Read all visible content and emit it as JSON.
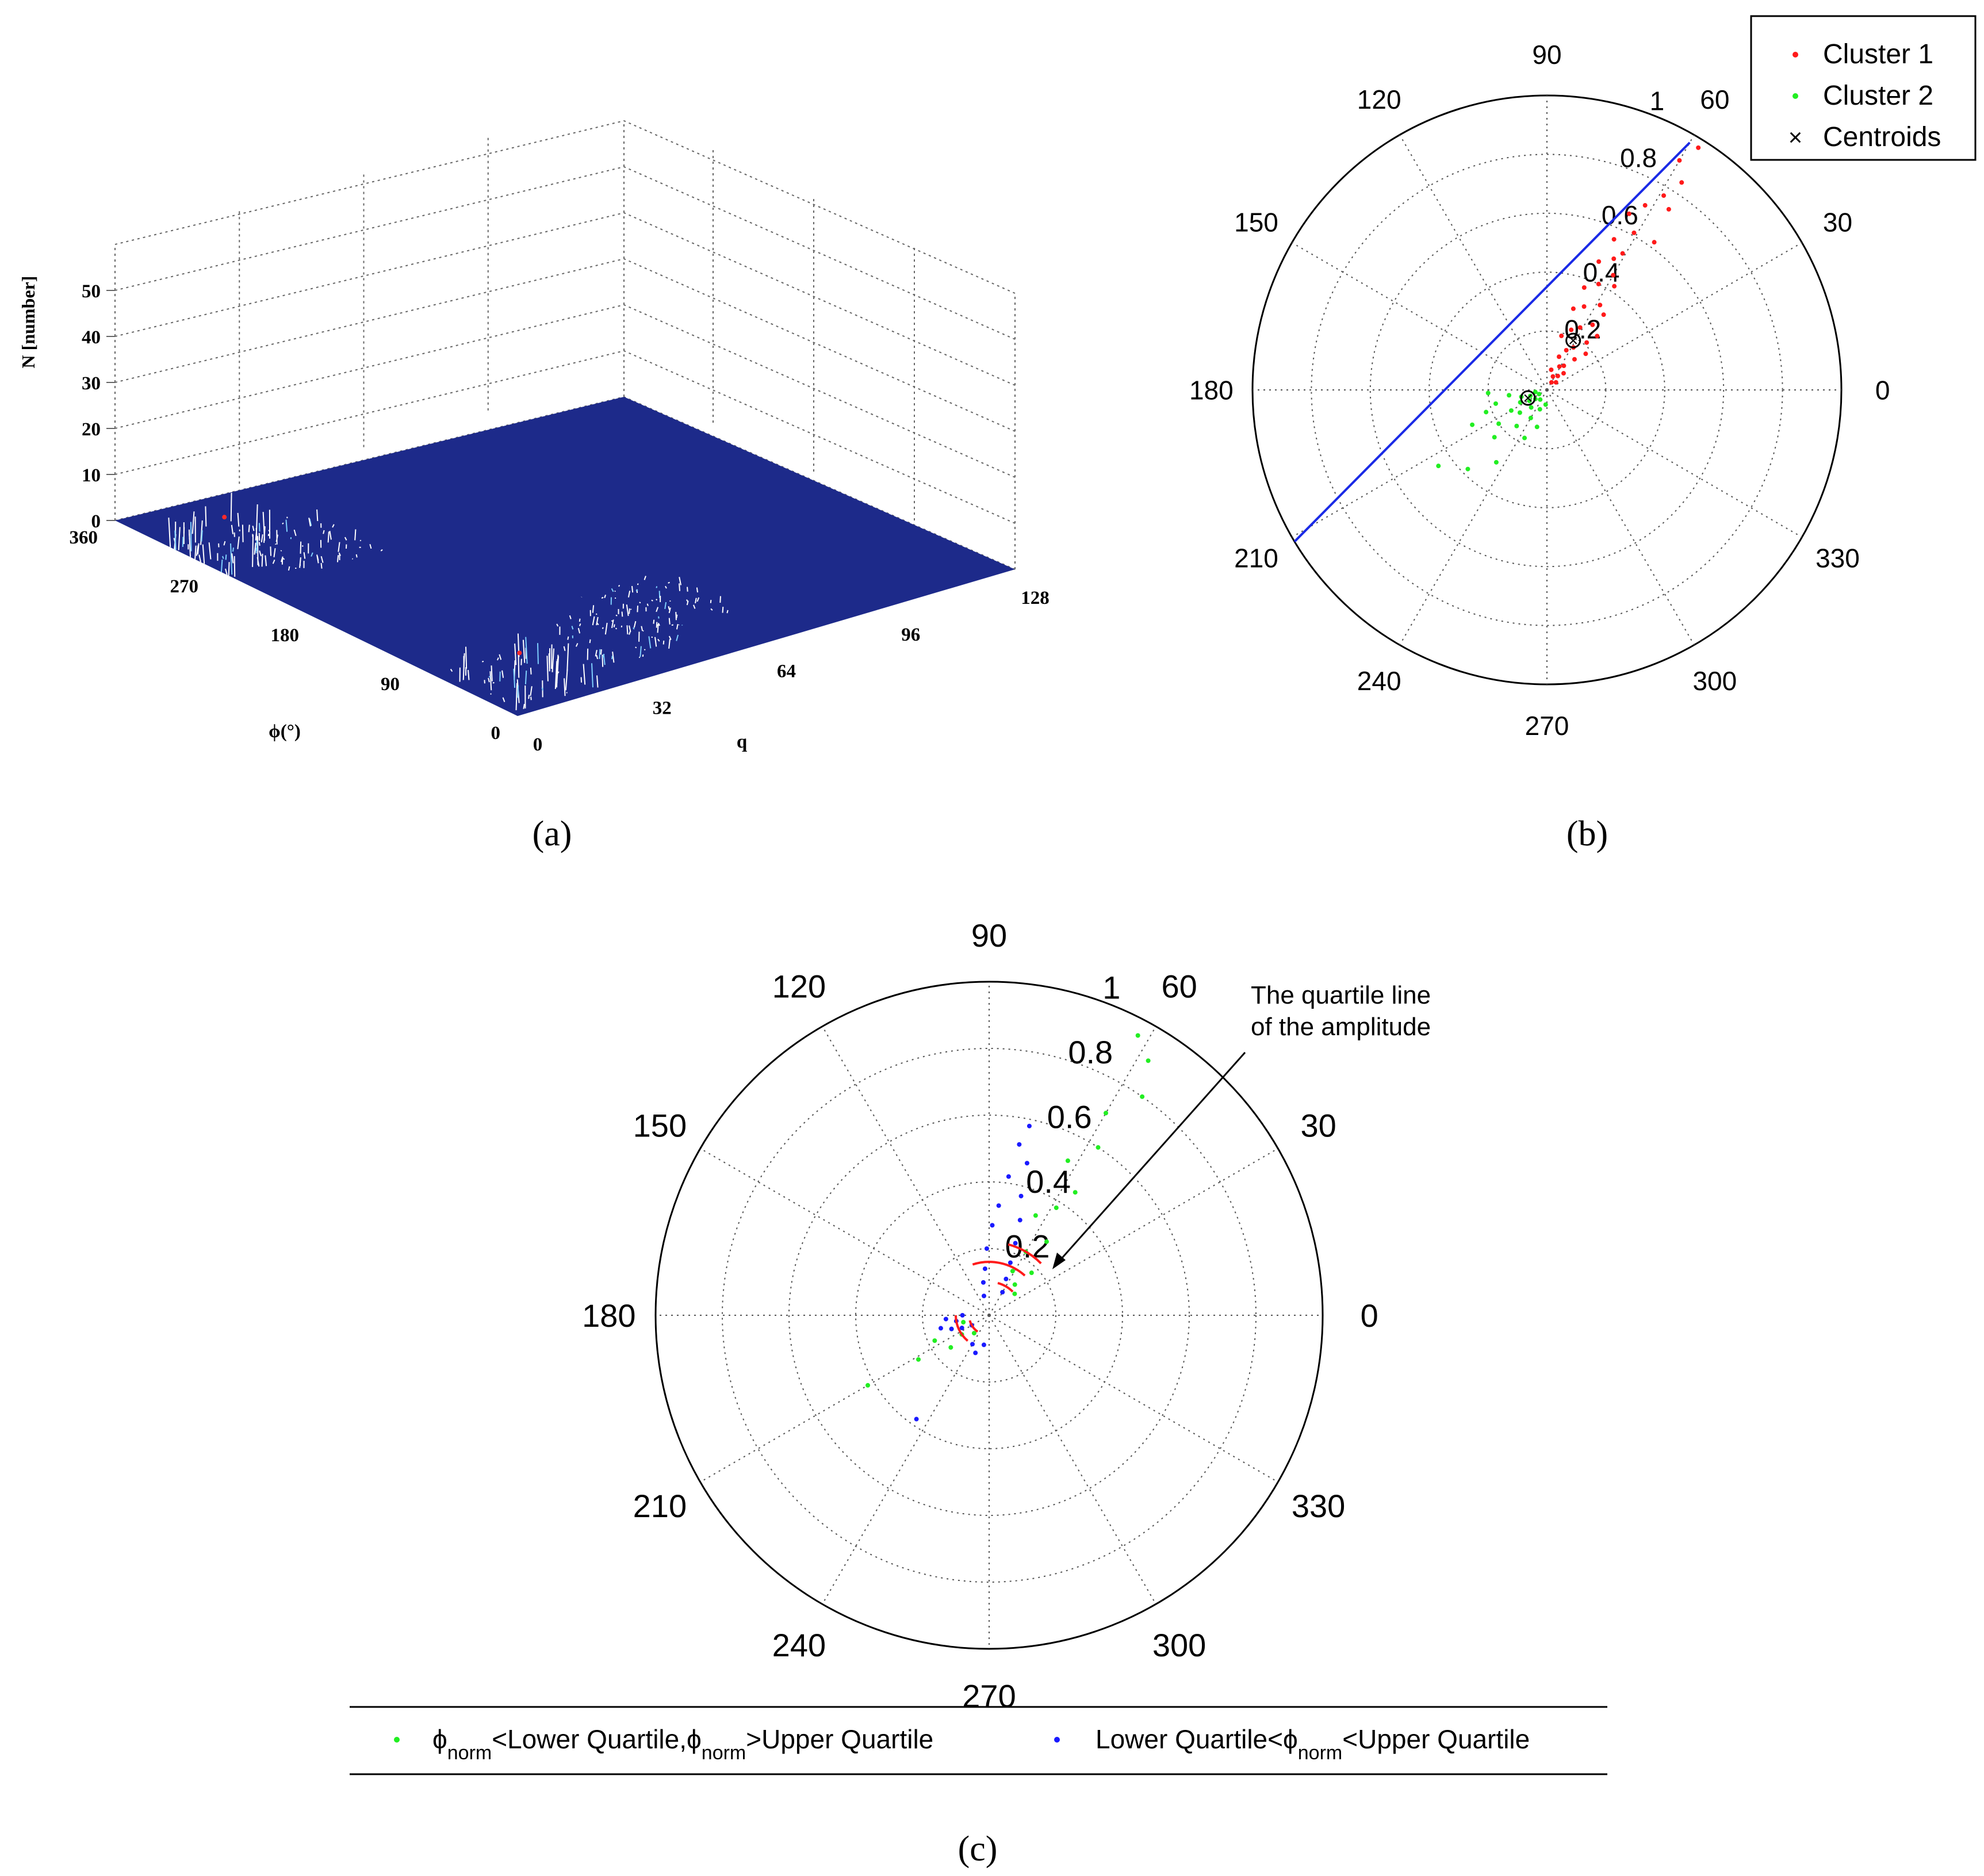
{
  "colors": {
    "surface": "#1d2a8a",
    "cluster1": "#ff1a1a",
    "cluster2": "#22ee22",
    "blue_pts": "#1a1aff",
    "fit_line": "#1a2ae6",
    "quartile_arc": "#ff1a1a",
    "axis": "#000000"
  },
  "panel_labels": {
    "a": "(a)",
    "b": "(b)",
    "c": "(c)"
  },
  "chart_data": [
    {
      "type": "surface3d",
      "zlabel": "N [number]",
      "xlabel": "q",
      "ylabel": "ϕ(°)",
      "z_ticks": [
        "0",
        "10",
        "20",
        "30",
        "40",
        "50"
      ],
      "x_ticks": [
        "0",
        "32",
        "64",
        "96",
        "128"
      ],
      "y_ticks": [
        "0",
        "90",
        "180",
        "270",
        "360"
      ],
      "xlim": [
        0,
        128
      ],
      "ylim": [
        0,
        360
      ],
      "zlim": [
        0,
        50
      ],
      "grid": true,
      "peaks": [
        {
          "q": 8,
          "phi": 290,
          "z": 8
        },
        {
          "q": 22,
          "phi": 270,
          "z": 3
        },
        {
          "q": 12,
          "phi": 40,
          "z": 7
        },
        {
          "q": 40,
          "phi": 60,
          "z": 3
        },
        {
          "q": 60,
          "phi": 80,
          "z": 2
        }
      ]
    },
    {
      "type": "scatter-polar",
      "angle_ticks": [
        "0",
        "30",
        "60",
        "90",
        "120",
        "150",
        "180",
        "210",
        "240",
        "270",
        "300",
        "330"
      ],
      "radial_ticks": [
        "0.2",
        "0.4",
        "0.6",
        "0.8",
        "1"
      ],
      "rlim": [
        0,
        1
      ],
      "legend_position": "top-right",
      "grid": true,
      "series": [
        {
          "name": "Cluster 1",
          "color": "#ff1a1a",
          "points": [
            {
              "theta": 58,
              "r": 0.97
            },
            {
              "theta": 60,
              "r": 0.9
            },
            {
              "theta": 57,
              "r": 0.84
            },
            {
              "theta": 59,
              "r": 0.77
            },
            {
              "theta": 62,
              "r": 0.71
            },
            {
              "theta": 65,
              "r": 0.66
            },
            {
              "theta": 61,
              "r": 0.61
            },
            {
              "theta": 66,
              "r": 0.56
            },
            {
              "theta": 63,
              "r": 0.5
            },
            {
              "theta": 68,
              "r": 0.47
            },
            {
              "theta": 60,
              "r": 0.45
            },
            {
              "theta": 64,
              "r": 0.4
            },
            {
              "theta": 70,
              "r": 0.37
            },
            {
              "theta": 58,
              "r": 0.34
            },
            {
              "theta": 66,
              "r": 0.31
            },
            {
              "theta": 72,
              "r": 0.29
            },
            {
              "theta": 55,
              "r": 0.27
            },
            {
              "theta": 62,
              "r": 0.24
            },
            {
              "theta": 68,
              "r": 0.22
            },
            {
              "theta": 50,
              "r": 0.21
            },
            {
              "theta": 75,
              "r": 0.19
            },
            {
              "theta": 58,
              "r": 0.17
            },
            {
              "theta": 64,
              "r": 0.15
            },
            {
              "theta": 48,
              "r": 0.14
            },
            {
              "theta": 70,
              "r": 0.12
            },
            {
              "theta": 55,
              "r": 0.1
            },
            {
              "theta": 62,
              "r": 0.09
            },
            {
              "theta": 45,
              "r": 0.08
            },
            {
              "theta": 78,
              "r": 0.07
            },
            {
              "theta": 52,
              "r": 0.06
            },
            {
              "theta": 66,
              "r": 0.05
            },
            {
              "theta": 40,
              "r": 0.04
            },
            {
              "theta": 59,
              "r": 0.03
            },
            {
              "theta": 47,
              "r": 0.25
            },
            {
              "theta": 43,
              "r": 0.18
            },
            {
              "theta": 53,
              "r": 0.32
            },
            {
              "theta": 57,
              "r": 0.42
            },
            {
              "theta": 61,
              "r": 0.53
            },
            {
              "theta": 54,
              "r": 0.62
            },
            {
              "theta": 56,
              "r": 0.74
            }
          ]
        },
        {
          "name": "Cluster 2",
          "color": "#22ee22",
          "points": [
            {
              "theta": 215,
              "r": 0.45
            },
            {
              "theta": 225,
              "r": 0.38
            },
            {
              "theta": 235,
              "r": 0.3
            },
            {
              "theta": 205,
              "r": 0.28
            },
            {
              "theta": 200,
              "r": 0.22
            },
            {
              "theta": 215,
              "r": 0.2
            },
            {
              "theta": 195,
              "r": 0.18
            },
            {
              "theta": 230,
              "r": 0.16
            },
            {
              "theta": 210,
              "r": 0.14
            },
            {
              "theta": 188,
              "r": 0.13
            },
            {
              "theta": 220,
              "r": 0.12
            },
            {
              "theta": 240,
              "r": 0.11
            },
            {
              "theta": 205,
              "r": 0.1
            },
            {
              "theta": 195,
              "r": 0.09
            },
            {
              "theta": 228,
              "r": 0.08
            },
            {
              "theta": 212,
              "r": 0.07
            },
            {
              "theta": 250,
              "r": 0.07
            },
            {
              "theta": 200,
              "r": 0.06
            },
            {
              "theta": 218,
              "r": 0.05
            },
            {
              "theta": 265,
              "r": 0.05
            },
            {
              "theta": 190,
              "r": 0.04
            },
            {
              "theta": 235,
              "r": 0.04
            },
            {
              "theta": 208,
              "r": 0.03
            },
            {
              "theta": 245,
              "r": 0.18
            },
            {
              "theta": 255,
              "r": 0.13
            },
            {
              "theta": 183,
              "r": 0.2
            },
            {
              "theta": 222,
              "r": 0.24
            }
          ]
        },
        {
          "name": "Centroids",
          "color": "#000000",
          "points": [
            {
              "theta": 62,
              "r": 0.19
            },
            {
              "theta": 203,
              "r": 0.07
            }
          ]
        }
      ],
      "fit_line": {
        "theta_start": 211,
        "r_start": 1.0,
        "theta_end": 60,
        "r_end": 0.97
      }
    },
    {
      "type": "scatter-polar",
      "angle_ticks": [
        "0",
        "30",
        "60",
        "90",
        "120",
        "150",
        "180",
        "210",
        "240",
        "270",
        "300",
        "330"
      ],
      "radial_ticks": [
        "0.2",
        "0.4",
        "0.6",
        "0.8",
        "1"
      ],
      "rlim": [
        0,
        1
      ],
      "annotation": "The quartile line of the amplitude",
      "legend_position": "bottom",
      "legend": [
        {
          "prefix": "ϕ",
          "sub1": "norm",
          "mid": "<Lower Quartile,ϕ",
          "sub2": "norm",
          "suffix": ">Upper Quartile",
          "color": "#22ee22"
        },
        {
          "prefix": "Lower Quartile<ϕ",
          "sub1": "norm",
          "mid": "<Upper Quartile",
          "sub2": "",
          "suffix": "",
          "color": "#1a1aff"
        }
      ],
      "grid": true,
      "series": [
        {
          "name": "ϕnorm<Lower Quartile,ϕnorm>Upper Quartile",
          "color": "#22ee22",
          "points": [
            {
              "theta": 62,
              "r": 0.95
            },
            {
              "theta": 58,
              "r": 0.9
            },
            {
              "theta": 55,
              "r": 0.8
            },
            {
              "theta": 60,
              "r": 0.7
            },
            {
              "theta": 57,
              "r": 0.6
            },
            {
              "theta": 63,
              "r": 0.52
            },
            {
              "theta": 55,
              "r": 0.45
            },
            {
              "theta": 58,
              "r": 0.38
            },
            {
              "theta": 65,
              "r": 0.33
            },
            {
              "theta": 52,
              "r": 0.28
            },
            {
              "theta": 60,
              "r": 0.22
            },
            {
              "theta": 45,
              "r": 0.18
            },
            {
              "theta": 62,
              "r": 0.15
            },
            {
              "theta": 50,
              "r": 0.12
            },
            {
              "theta": 40,
              "r": 0.1
            },
            {
              "theta": 210,
              "r": 0.42
            },
            {
              "theta": 212,
              "r": 0.25
            },
            {
              "theta": 205,
              "r": 0.18
            },
            {
              "theta": 220,
              "r": 0.15
            },
            {
              "theta": 200,
              "r": 0.12
            },
            {
              "theta": 215,
              "r": 0.1
            },
            {
              "theta": 195,
              "r": 0.08
            },
            {
              "theta": 230,
              "r": 0.07
            }
          ]
        },
        {
          "name": "Lower Quartile<ϕnorm<Upper Quartile",
          "color": "#1a1aff",
          "points": [
            {
              "theta": 78,
              "r": 0.58
            },
            {
              "theta": 80,
              "r": 0.52
            },
            {
              "theta": 76,
              "r": 0.47
            },
            {
              "theta": 82,
              "r": 0.42
            },
            {
              "theta": 75,
              "r": 0.37
            },
            {
              "theta": 85,
              "r": 0.33
            },
            {
              "theta": 72,
              "r": 0.3
            },
            {
              "theta": 88,
              "r": 0.27
            },
            {
              "theta": 70,
              "r": 0.23
            },
            {
              "theta": 92,
              "r": 0.2
            },
            {
              "theta": 68,
              "r": 0.17
            },
            {
              "theta": 95,
              "r": 0.14
            },
            {
              "theta": 65,
              "r": 0.12
            },
            {
              "theta": 100,
              "r": 0.1
            },
            {
              "theta": 60,
              "r": 0.08
            },
            {
              "theta": 105,
              "r": 0.06
            },
            {
              "theta": 195,
              "r": 0.15
            },
            {
              "theta": 200,
              "r": 0.12
            },
            {
              "theta": 185,
              "r": 0.13
            },
            {
              "theta": 190,
              "r": 0.1
            },
            {
              "theta": 205,
              "r": 0.09
            },
            {
              "theta": 180,
              "r": 0.08
            },
            {
              "theta": 210,
              "r": 0.06
            },
            {
              "theta": 235,
              "r": 0.38
            },
            {
              "theta": 240,
              "r": 0.1
            },
            {
              "theta": 250,
              "r": 0.12
            },
            {
              "theta": 260,
              "r": 0.09
            }
          ]
        }
      ],
      "quartile_arcs": [
        {
          "theta_center": 60,
          "r": 0.22,
          "span": 30
        },
        {
          "theta_center": 78,
          "r": 0.16,
          "span": 60
        },
        {
          "theta_center": 60,
          "r": 0.1,
          "span": 30
        },
        {
          "theta_center": 205,
          "r": 0.1,
          "span": 50
        },
        {
          "theta_center": 215,
          "r": 0.06,
          "span": 40
        }
      ]
    }
  ]
}
